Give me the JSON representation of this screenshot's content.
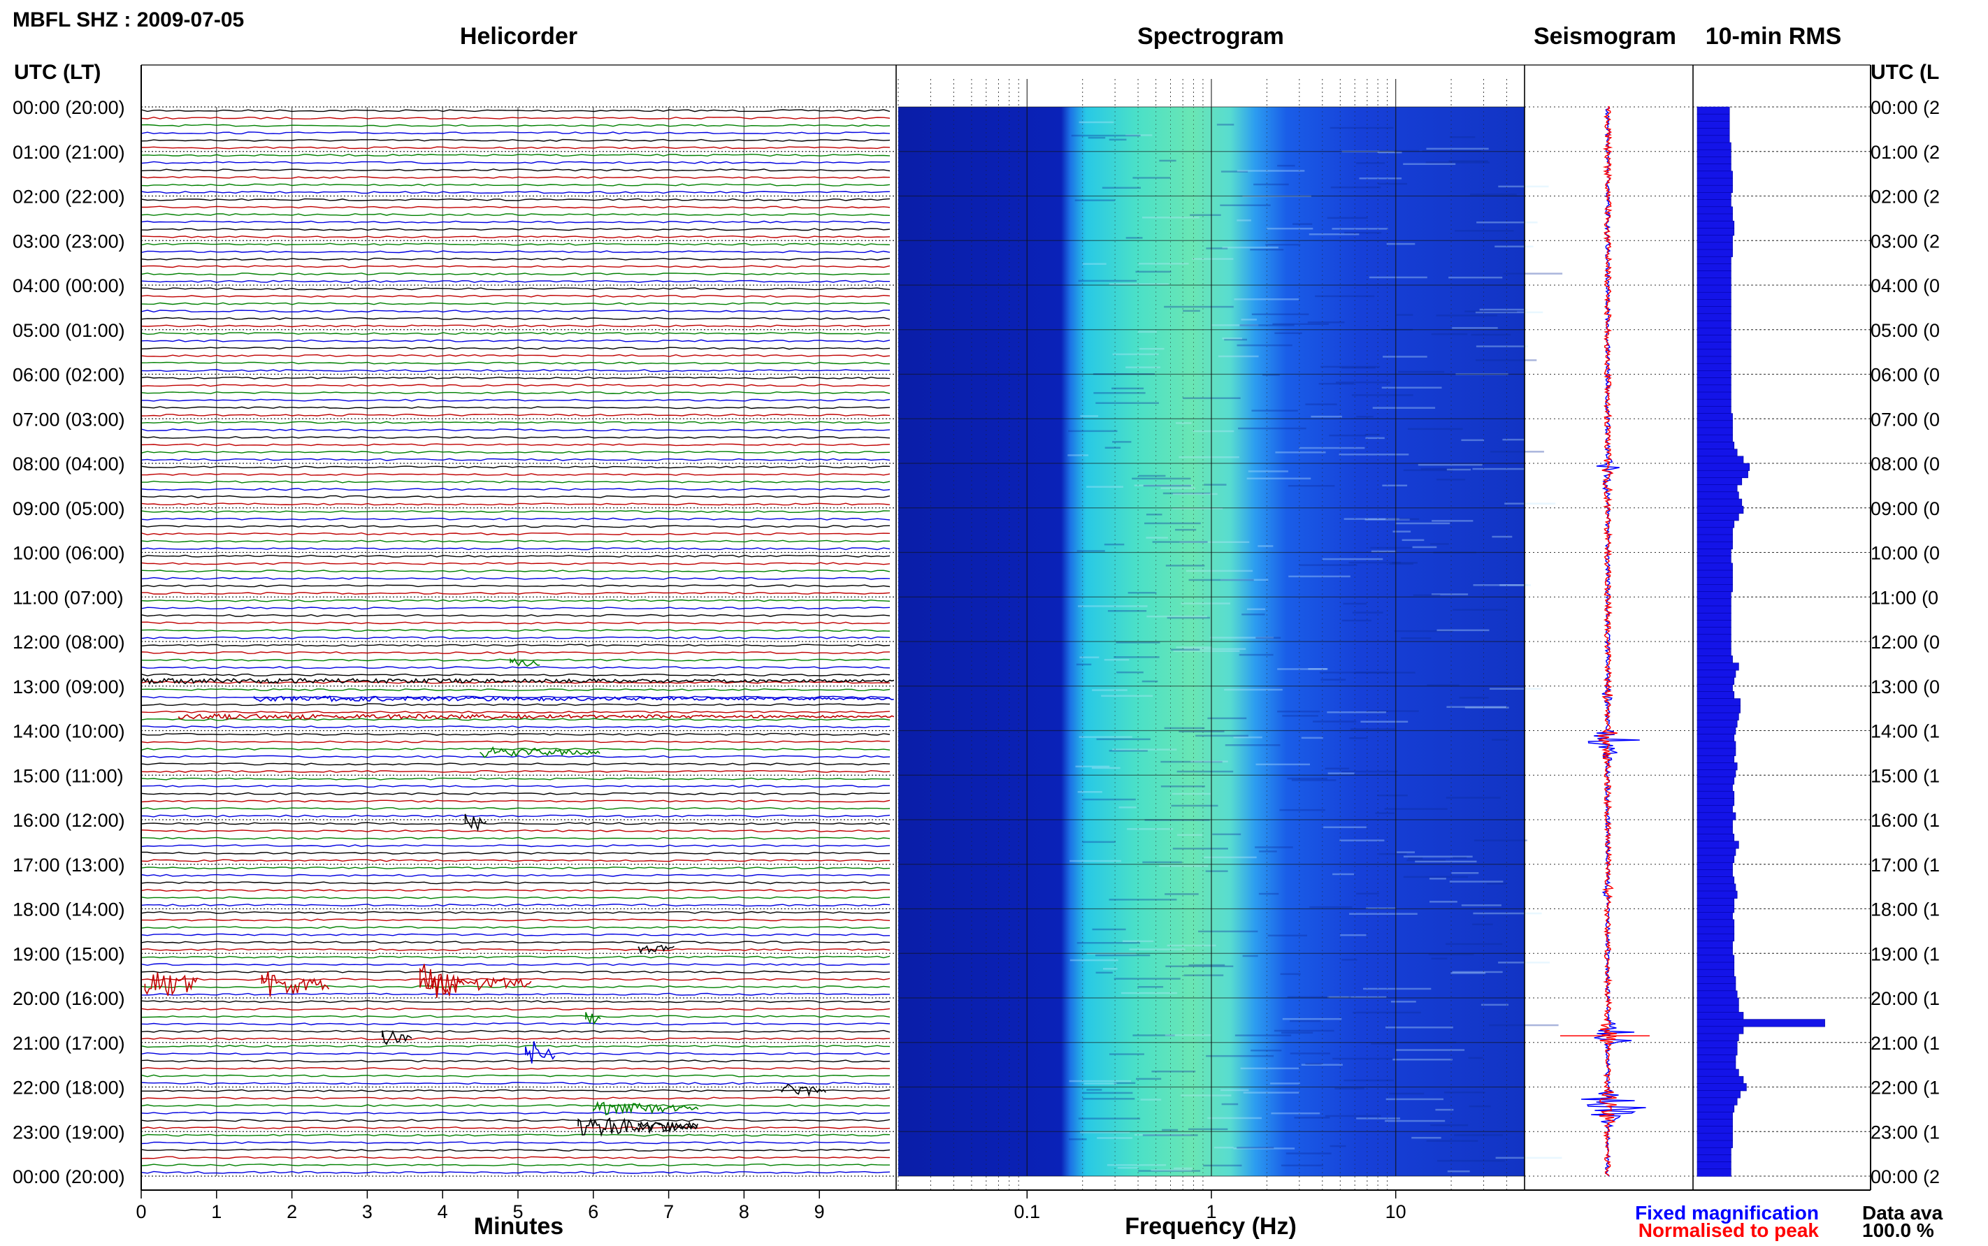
{
  "chart_data": {
    "type": "helicorder",
    "title": "MBFL SHZ : 2009-07-05",
    "panels": {
      "helicorder": "Helicorder",
      "spectrogram": "Spectrogram",
      "seismogram": "Seismogram",
      "rms": "10-min RMS"
    },
    "time_header": "UTC (LT)",
    "time_header_right": "UTC (L",
    "time_labels": [
      "00:00 (20:00)",
      "01:00 (21:00)",
      "02:00 (22:00)",
      "03:00 (23:00)",
      "04:00 (00:00)",
      "05:00 (01:00)",
      "06:00 (02:00)",
      "07:00 (03:00)",
      "08:00 (04:00)",
      "09:00 (05:00)",
      "10:00 (06:00)",
      "11:00 (07:00)",
      "12:00 (08:00)",
      "13:00 (09:00)",
      "14:00 (10:00)",
      "15:00 (11:00)",
      "16:00 (12:00)",
      "17:00 (13:00)",
      "18:00 (14:00)",
      "19:00 (15:00)",
      "20:00 (16:00)",
      "21:00 (17:00)",
      "22:00 (18:00)",
      "23:00 (19:00)",
      "00:00 (20:00)"
    ],
    "time_labels_right": [
      "00:00 (2",
      "01:00 (2",
      "02:00 (2",
      "03:00 (2",
      "04:00 (0",
      "05:00 (0",
      "06:00 (0",
      "07:00 (0",
      "08:00 (0",
      "09:00 (0",
      "10:00 (0",
      "11:00 (0",
      "12:00 (0",
      "13:00 (0",
      "14:00 (1",
      "15:00 (1",
      "16:00 (1",
      "17:00 (1",
      "18:00 (1",
      "19:00 (1",
      "20:00 (1",
      "21:00 (1",
      "22:00 (1",
      "23:00 (1",
      "00:00 (2"
    ],
    "minutes_axis": {
      "label": "Minutes",
      "ticks": [
        0,
        1,
        2,
        3,
        4,
        5,
        6,
        7,
        8,
        9
      ],
      "xlim": [
        0,
        10
      ]
    },
    "frequency_axis": {
      "label": "Frequency (Hz)",
      "scale": "log",
      "ticks": [
        {
          "value": 0.1,
          "label": "0.1"
        },
        {
          "value": 1,
          "label": "1"
        },
        {
          "value": 10,
          "label": "10"
        }
      ],
      "xlim": [
        0.02,
        50
      ]
    },
    "helicorder_trace_colors": [
      "#000000",
      "#c00000",
      "#008000",
      "#0000e0"
    ],
    "rms_10min": {
      "unit": "relative",
      "values": [
        0.21,
        0.21,
        0.21,
        0.21,
        0.21,
        0.22,
        0.22,
        0.22,
        0.22,
        0.23,
        0.23,
        0.23,
        0.22,
        0.22,
        0.23,
        0.23,
        0.24,
        0.24,
        0.23,
        0.23,
        0.23,
        0.22,
        0.22,
        0.22,
        0.22,
        0.22,
        0.22,
        0.22,
        0.22,
        0.22,
        0.22,
        0.22,
        0.22,
        0.22,
        0.22,
        0.22,
        0.22,
        0.22,
        0.22,
        0.22,
        0.22,
        0.22,
        0.22,
        0.23,
        0.23,
        0.23,
        0.23,
        0.24,
        0.26,
        0.3,
        0.34,
        0.33,
        0.29,
        0.26,
        0.27,
        0.29,
        0.3,
        0.27,
        0.24,
        0.23,
        0.23,
        0.23,
        0.22,
        0.22,
        0.23,
        0.23,
        0.23,
        0.23,
        0.22,
        0.22,
        0.22,
        0.22,
        0.22,
        0.22,
        0.22,
        0.22,
        0.22,
        0.23,
        0.27,
        0.25,
        0.24,
        0.23,
        0.24,
        0.28,
        0.28,
        0.27,
        0.26,
        0.25,
        0.24,
        0.25,
        0.25,
        0.24,
        0.26,
        0.25,
        0.24,
        0.23,
        0.24,
        0.24,
        0.23,
        0.25,
        0.23,
        0.23,
        0.24,
        0.27,
        0.25,
        0.24,
        0.23,
        0.23,
        0.24,
        0.25,
        0.26,
        0.24,
        0.24,
        0.23,
        0.24,
        0.24,
        0.24,
        0.23,
        0.23,
        0.24,
        0.24,
        0.24,
        0.25,
        0.25,
        0.26,
        0.27,
        0.27,
        0.3,
        0.83,
        0.3,
        0.27,
        0.26,
        0.26,
        0.25,
        0.25,
        0.27,
        0.3,
        0.32,
        0.28,
        0.26,
        0.24,
        0.23,
        0.23,
        0.23,
        0.23,
        0.23,
        0.22,
        0.22,
        0.22,
        0.22
      ]
    },
    "legend": {
      "fixed": {
        "label": "Fixed magnification",
        "color": "#0000ff"
      },
      "normalised": {
        "label": "Normalised to peak",
        "color": "#ff0000"
      }
    },
    "data_availability": {
      "label": "Data ava",
      "value": "100.0 %"
    }
  }
}
